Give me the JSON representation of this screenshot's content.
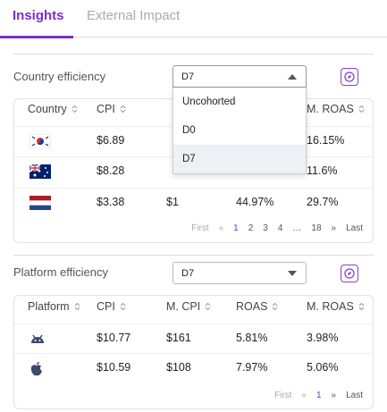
{
  "tabs": [
    "Insights",
    "External Impact"
  ],
  "sections": [
    {
      "title": "Country efficiency",
      "dropdown": {
        "value": "D7",
        "options": [
          "Uncohorted",
          "D0",
          "D7"
        ]
      },
      "table": {
        "columns": [
          "Country",
          "CPI",
          null,
          null,
          "M. ROAS"
        ],
        "rows": [
          [
            "$6.89",
            null,
            null,
            "16.15%"
          ],
          [
            "$8.28",
            null,
            null,
            "11.6%"
          ],
          [
            "$3.38",
            "$1",
            "44.97%",
            "29.7%"
          ]
        ]
      },
      "pagination": {
        "first": "First",
        "prev": "«",
        "pages": [
          "1",
          "2",
          "3",
          "4",
          "…",
          "18"
        ],
        "next": "»",
        "last": "Last"
      }
    },
    {
      "title": "Platform efficiency",
      "dropdown": {
        "value": "D7"
      },
      "table": {
        "columns": [
          "Platform",
          "CPI",
          "M. CPI",
          "ROAS",
          "M. ROAS"
        ],
        "rows": [
          [
            "$10.77",
            "$161",
            "5.81%",
            "3.98%"
          ],
          [
            "$10.59",
            "$108",
            "7.97%",
            "5.06%"
          ]
        ]
      },
      "pagination": {
        "first": "First",
        "prev": "«",
        "pages": [
          "1"
        ],
        "next": "»",
        "last": "Last"
      }
    }
  ]
}
